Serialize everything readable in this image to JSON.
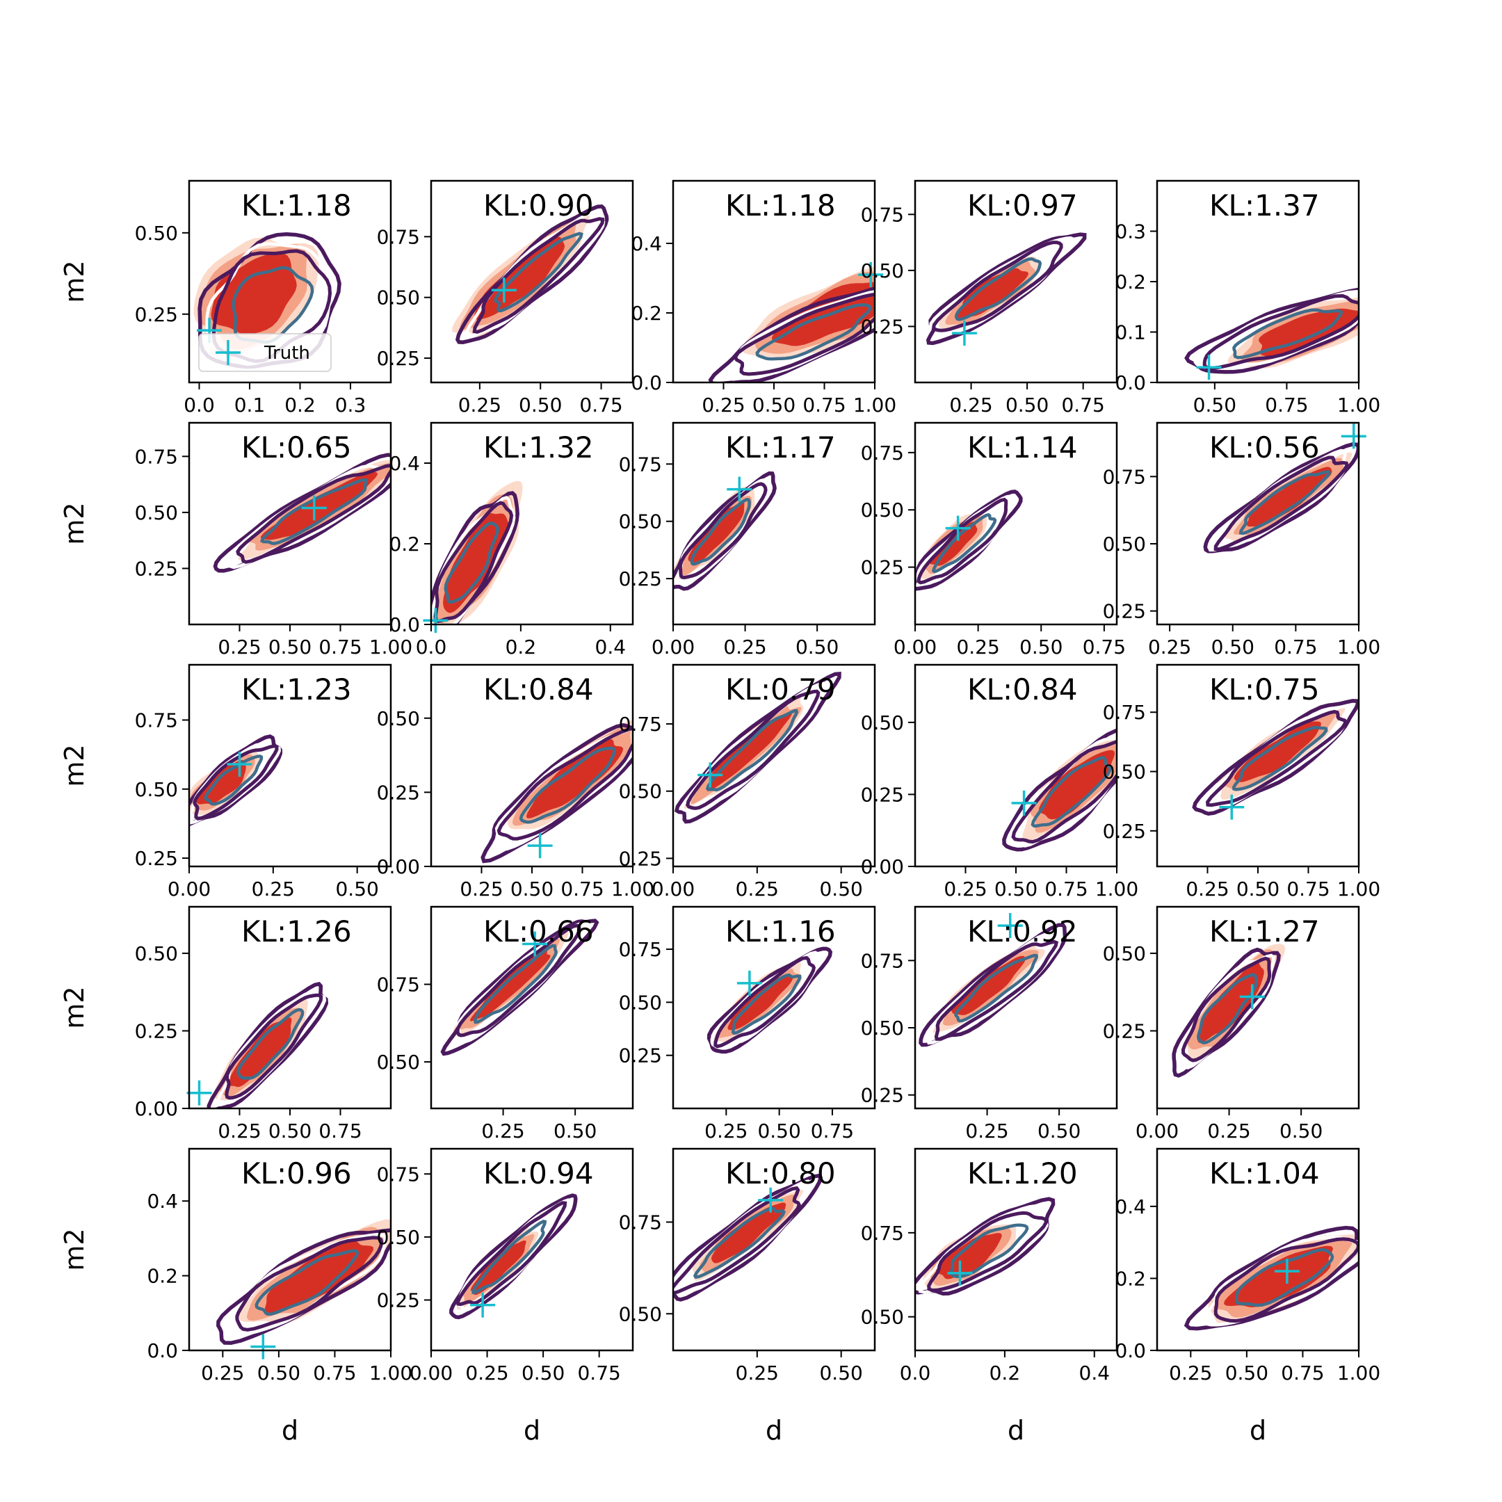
{
  "figure": {
    "xlabel": "d",
    "ylabel": "m2",
    "legend": {
      "label": "Truth",
      "placement": "lower-left of first panel"
    }
  },
  "colors": {
    "fill_outer": "#fcd3c1",
    "fill_mid": "#f08a6a",
    "fill_inner": "#d42a20",
    "line_outer": "#4b1a5e",
    "line_mid": "#ffffff",
    "line_inner": "#3f6e8c",
    "truth_marker": "#17becf"
  },
  "chart_data": [
    {
      "type": "contour",
      "kl_label": "KL:1.18",
      "xlim": [
        -0.02,
        0.38
      ],
      "ylim": [
        0.04,
        0.66
      ],
      "xticks": [
        0.0,
        0.1,
        0.2,
        0.3
      ],
      "xtick_labels": [
        "0.0",
        "0.1",
        "0.2",
        "0.3"
      ],
      "yticks": [
        0.25,
        0.5
      ],
      "ytick_labels": [
        "0.25",
        "0.50"
      ],
      "truth": [
        0.02,
        0.2
      ],
      "filled_center": [
        0.11,
        0.31
      ],
      "filled_size": [
        0.3,
        0.38
      ],
      "line_center": [
        0.14,
        0.28
      ],
      "line_size": [
        0.34,
        0.46
      ],
      "angle": 40
    },
    {
      "type": "contour",
      "kl_label": "KL:0.90",
      "xlim": [
        0.05,
        0.88
      ],
      "ylim": [
        0.15,
        0.98
      ],
      "xticks": [
        0.25,
        0.5,
        0.75
      ],
      "xtick_labels": [
        "0.25",
        "0.50",
        "0.75"
      ],
      "yticks": [
        0.25,
        0.5,
        0.75
      ],
      "ytick_labels": [
        "0.25",
        "0.50",
        "0.75"
      ],
      "truth": [
        0.35,
        0.53
      ],
      "filled_center": [
        0.42,
        0.58
      ],
      "filled_size": [
        0.62,
        0.3
      ],
      "line_center": [
        0.48,
        0.6
      ],
      "line_size": [
        0.72,
        0.28
      ],
      "angle": 42
    },
    {
      "type": "contour",
      "kl_label": "KL:1.18",
      "xlim": [
        0.0,
        1.0
      ],
      "ylim": [
        0.0,
        0.58
      ],
      "xticks": [
        0.25,
        0.5,
        0.75,
        1.0
      ],
      "xtick_labels": [
        "0.25",
        "0.50",
        "0.75",
        "1.00"
      ],
      "yticks": [
        0.0,
        0.2,
        0.4
      ],
      "ytick_labels": [
        "0.0",
        "0.2",
        "0.4"
      ],
      "truth": [
        0.98,
        0.31
      ],
      "filled_center": [
        0.8,
        0.2
      ],
      "filled_size": [
        0.62,
        0.36
      ],
      "line_center": [
        0.7,
        0.14
      ],
      "line_size": [
        0.72,
        0.3
      ],
      "angle": 24
    },
    {
      "type": "contour",
      "kl_label": "KL:0.97",
      "xlim": [
        0.0,
        0.9
      ],
      "ylim": [
        0.0,
        0.9
      ],
      "xticks": [
        0.25,
        0.5,
        0.75
      ],
      "xtick_labels": [
        "0.25",
        "0.50",
        "0.75"
      ],
      "yticks": [
        0.25,
        0.5,
        0.75
      ],
      "ytick_labels": [
        "0.25",
        "0.50",
        "0.75"
      ],
      "truth": [
        0.22,
        0.22
      ],
      "filled_center": [
        0.34,
        0.4
      ],
      "filled_size": [
        0.46,
        0.26
      ],
      "line_center": [
        0.38,
        0.42
      ],
      "line_size": [
        0.72,
        0.28
      ],
      "angle": 34
    },
    {
      "type": "contour",
      "kl_label": "KL:1.37",
      "xlim": [
        0.3,
        1.0
      ],
      "ylim": [
        0.0,
        0.4
      ],
      "xticks": [
        0.5,
        0.75,
        1.0
      ],
      "xtick_labels": [
        "0.50",
        "0.75",
        "1.00"
      ],
      "yticks": [
        0.0,
        0.1,
        0.2,
        0.3
      ],
      "ytick_labels": [
        "0.0",
        "0.1",
        "0.2",
        "0.3"
      ],
      "truth": [
        0.48,
        0.03
      ],
      "filled_center": [
        0.82,
        0.1
      ],
      "filled_size": [
        0.36,
        0.2
      ],
      "line_center": [
        0.75,
        0.1
      ],
      "line_size": [
        0.48,
        0.2
      ],
      "angle": 20
    },
    {
      "type": "contour",
      "kl_label": "KL:0.65",
      "xlim": [
        0.0,
        1.0
      ],
      "ylim": [
        0.0,
        0.9
      ],
      "xticks": [
        0.25,
        0.5,
        0.75,
        1.0
      ],
      "xtick_labels": [
        "0.25",
        "0.50",
        "0.75",
        "1.00"
      ],
      "yticks": [
        0.25,
        0.5,
        0.75
      ],
      "ytick_labels": [
        "0.25",
        "0.50",
        "0.75"
      ],
      "truth": [
        0.62,
        0.52
      ],
      "filled_center": [
        0.65,
        0.52
      ],
      "filled_size": [
        0.78,
        0.26
      ],
      "line_center": [
        0.62,
        0.5
      ],
      "line_size": [
        0.9,
        0.3
      ],
      "angle": 30
    },
    {
      "type": "contour",
      "kl_label": "KL:1.32",
      "xlim": [
        0.0,
        0.45
      ],
      "ylim": [
        0.0,
        0.5
      ],
      "xticks": [
        0.0,
        0.2,
        0.4
      ],
      "xtick_labels": [
        "0.0",
        "0.2",
        "0.4"
      ],
      "yticks": [
        0.0,
        0.2,
        0.4
      ],
      "ytick_labels": [
        "0.0",
        "0.2",
        "0.4"
      ],
      "truth": [
        0.01,
        0.01
      ],
      "filled_center": [
        0.1,
        0.16
      ],
      "filled_size": [
        0.34,
        0.2
      ],
      "line_center": [
        0.09,
        0.15
      ],
      "line_size": [
        0.34,
        0.18
      ],
      "angle": 60
    },
    {
      "type": "contour",
      "kl_label": "KL:1.17",
      "xlim": [
        0.0,
        0.7
      ],
      "ylim": [
        0.05,
        0.93
      ],
      "xticks": [
        0.0,
        0.25,
        0.5
      ],
      "xtick_labels": [
        "0.00",
        "0.25",
        "0.50"
      ],
      "yticks": [
        0.25,
        0.5,
        0.75
      ],
      "ytick_labels": [
        "0.25",
        "0.50",
        "0.75"
      ],
      "truth": [
        0.23,
        0.64
      ],
      "filled_center": [
        0.15,
        0.45
      ],
      "filled_size": [
        0.4,
        0.2
      ],
      "line_center": [
        0.17,
        0.45
      ],
      "line_size": [
        0.52,
        0.22
      ],
      "angle": 48
    },
    {
      "type": "contour",
      "kl_label": "KL:1.14",
      "xlim": [
        0.0,
        0.8
      ],
      "ylim": [
        0.0,
        0.88
      ],
      "xticks": [
        0.0,
        0.25,
        0.5,
        0.75
      ],
      "xtick_labels": [
        "0.00",
        "0.25",
        "0.50",
        "0.75"
      ],
      "yticks": [
        0.25,
        0.5,
        0.75
      ],
      "ytick_labels": [
        "0.25",
        "0.50",
        "0.75"
      ],
      "truth": [
        0.17,
        0.42
      ],
      "filled_center": [
        0.15,
        0.35
      ],
      "filled_size": [
        0.32,
        0.2
      ],
      "line_center": [
        0.2,
        0.36
      ],
      "line_size": [
        0.52,
        0.22
      ],
      "angle": 42
    },
    {
      "type": "contour",
      "kl_label": "KL:0.56",
      "xlim": [
        0.2,
        1.0
      ],
      "ylim": [
        0.2,
        0.95
      ],
      "xticks": [
        0.25,
        0.5,
        0.75,
        1.0
      ],
      "xtick_labels": [
        "0.25",
        "0.50",
        "0.75",
        "1.00"
      ],
      "yticks": [
        0.25,
        0.5,
        0.75
      ],
      "ytick_labels": [
        "0.25",
        "0.50",
        "0.75"
      ],
      "truth": [
        0.98,
        0.9
      ],
      "filled_center": [
        0.72,
        0.67
      ],
      "filled_size": [
        0.5,
        0.2
      ],
      "line_center": [
        0.7,
        0.66
      ],
      "line_size": [
        0.62,
        0.24
      ],
      "angle": 34
    },
    {
      "type": "contour",
      "kl_label": "KL:1.23",
      "xlim": [
        0.0,
        0.6
      ],
      "ylim": [
        0.22,
        0.95
      ],
      "xticks": [
        0.0,
        0.25,
        0.5
      ],
      "xtick_labels": [
        "0.00",
        "0.25",
        "0.50"
      ],
      "yticks": [
        0.25,
        0.5,
        0.75
      ],
      "ytick_labels": [
        "0.25",
        "0.50",
        "0.75"
      ],
      "truth": [
        0.15,
        0.59
      ],
      "filled_center": [
        0.1,
        0.52
      ],
      "filled_size": [
        0.26,
        0.18
      ],
      "line_center": [
        0.13,
        0.53
      ],
      "line_size": [
        0.36,
        0.2
      ],
      "angle": 40
    },
    {
      "type": "contour",
      "kl_label": "KL:0.84",
      "xlim": [
        0.0,
        1.0
      ],
      "ylim": [
        0.0,
        0.68
      ],
      "xticks": [
        0.25,
        0.5,
        0.75,
        1.0
      ],
      "xtick_labels": [
        "0.25",
        "0.50",
        "0.75",
        "1.00"
      ],
      "yticks": [
        0.0,
        0.25,
        0.5
      ],
      "ytick_labels": [
        "0.00",
        "0.25",
        "0.50"
      ],
      "truth": [
        0.54,
        0.07
      ],
      "filled_center": [
        0.72,
        0.3
      ],
      "filled_size": [
        0.6,
        0.3
      ],
      "line_center": [
        0.68,
        0.27
      ],
      "line_size": [
        0.76,
        0.32
      ],
      "angle": 38
    },
    {
      "type": "contour",
      "kl_label": "KL:0.79",
      "xlim": [
        0.0,
        0.6
      ],
      "ylim": [
        0.22,
        0.97
      ],
      "xticks": [
        0.0,
        0.25,
        0.5
      ],
      "xtick_labels": [
        "0.00",
        "0.25",
        "0.50"
      ],
      "yticks": [
        0.25,
        0.5,
        0.75
      ],
      "ytick_labels": [
        "0.25",
        "0.50",
        "0.75"
      ],
      "truth": [
        0.11,
        0.56
      ],
      "filled_center": [
        0.22,
        0.65
      ],
      "filled_size": [
        0.46,
        0.16
      ],
      "line_center": [
        0.24,
        0.65
      ],
      "line_size": [
        0.62,
        0.2
      ],
      "angle": 42
    },
    {
      "type": "contour",
      "kl_label": "KL:0.84",
      "xlim": [
        0.0,
        1.0
      ],
      "ylim": [
        0.0,
        0.7
      ],
      "xticks": [
        0.25,
        0.5,
        0.75,
        1.0
      ],
      "xtick_labels": [
        "0.25",
        "0.50",
        "0.75",
        "1.00"
      ],
      "yticks": [
        0.0,
        0.25,
        0.5
      ],
      "ytick_labels": [
        "0.00",
        "0.25",
        "0.50"
      ],
      "truth": [
        0.54,
        0.22
      ],
      "filled_center": [
        0.8,
        0.28
      ],
      "filled_size": [
        0.5,
        0.32
      ],
      "line_center": [
        0.78,
        0.26
      ],
      "line_size": [
        0.64,
        0.34
      ],
      "angle": 42
    },
    {
      "type": "contour",
      "kl_label": "KL:0.75",
      "xlim": [
        0.0,
        1.0
      ],
      "ylim": [
        0.1,
        0.95
      ],
      "xticks": [
        0.25,
        0.5,
        0.75,
        1.0
      ],
      "xtick_labels": [
        "0.25",
        "0.50",
        "0.75",
        "1.00"
      ],
      "yticks": [
        0.25,
        0.5,
        0.75
      ],
      "ytick_labels": [
        "0.25",
        "0.50",
        "0.75"
      ],
      "truth": [
        0.37,
        0.35
      ],
      "filled_center": [
        0.6,
        0.58
      ],
      "filled_size": [
        0.6,
        0.26
      ],
      "line_center": [
        0.6,
        0.56
      ],
      "line_size": [
        0.78,
        0.3
      ],
      "angle": 34
    },
    {
      "type": "contour",
      "kl_label": "KL:1.26",
      "xlim": [
        0.0,
        1.0
      ],
      "ylim": [
        0.0,
        0.65
      ],
      "xticks": [
        0.25,
        0.5,
        0.75
      ],
      "xtick_labels": [
        "0.25",
        "0.50",
        "0.75"
      ],
      "yticks": [
        0.0,
        0.25,
        0.5
      ],
      "ytick_labels": [
        "0.00",
        "0.25",
        "0.50"
      ],
      "truth": [
        0.05,
        0.05
      ],
      "filled_center": [
        0.36,
        0.18
      ],
      "filled_size": [
        0.46,
        0.24
      ],
      "line_center": [
        0.4,
        0.2
      ],
      "line_size": [
        0.58,
        0.26
      ],
      "angle": 48
    },
    {
      "type": "contour",
      "kl_label": "KL:0.66",
      "xlim": [
        0.0,
        0.7
      ],
      "ylim": [
        0.35,
        1.0
      ],
      "xticks": [
        0.25,
        0.5
      ],
      "xtick_labels": [
        "0.25",
        "0.50"
      ],
      "yticks": [
        0.5,
        0.75
      ],
      "ytick_labels": [
        "0.50",
        "0.75"
      ],
      "truth": [
        0.36,
        0.88
      ],
      "filled_center": [
        0.28,
        0.75
      ],
      "filled_size": [
        0.44,
        0.14
      ],
      "line_center": [
        0.3,
        0.75
      ],
      "line_size": [
        0.58,
        0.18
      ],
      "angle": 42
    },
    {
      "type": "contour",
      "kl_label": "KL:1.16",
      "xlim": [
        0.0,
        0.95
      ],
      "ylim": [
        0.0,
        0.95
      ],
      "xticks": [
        0.25,
        0.5,
        0.75
      ],
      "xtick_labels": [
        "0.25",
        "0.50",
        "0.75"
      ],
      "yticks": [
        0.25,
        0.5,
        0.75
      ],
      "ytick_labels": [
        "0.25",
        "0.50",
        "0.75"
      ],
      "truth": [
        0.36,
        0.59
      ],
      "filled_center": [
        0.4,
        0.5
      ],
      "filled_size": [
        0.48,
        0.24
      ],
      "line_center": [
        0.44,
        0.5
      ],
      "line_size": [
        0.64,
        0.28
      ],
      "angle": 40
    },
    {
      "type": "contour",
      "kl_label": "KL:0.92",
      "xlim": [
        0.0,
        0.7
      ],
      "ylim": [
        0.2,
        0.95
      ],
      "xticks": [
        0.25,
        0.5
      ],
      "xtick_labels": [
        "0.25",
        "0.50"
      ],
      "yticks": [
        0.25,
        0.5,
        0.75
      ],
      "ytick_labels": [
        "0.25",
        "0.50",
        "0.75"
      ],
      "truth": [
        0.33,
        0.88
      ],
      "filled_center": [
        0.25,
        0.65
      ],
      "filled_size": [
        0.42,
        0.18
      ],
      "line_center": [
        0.28,
        0.65
      ],
      "line_size": [
        0.58,
        0.22
      ],
      "angle": 38
    },
    {
      "type": "contour",
      "kl_label": "KL:1.27",
      "xlim": [
        0.0,
        0.7
      ],
      "ylim": [
        0.0,
        0.65
      ],
      "xticks": [
        0.0,
        0.25,
        0.5
      ],
      "xtick_labels": [
        "0.00",
        "0.25",
        "0.50"
      ],
      "yticks": [
        0.25,
        0.5
      ],
      "ytick_labels": [
        "0.25",
        "0.50"
      ],
      "truth": [
        0.33,
        0.36
      ],
      "filled_center": [
        0.26,
        0.34
      ],
      "filled_size": [
        0.42,
        0.22
      ],
      "line_center": [
        0.24,
        0.32
      ],
      "line_size": [
        0.46,
        0.24
      ],
      "angle": 50
    },
    {
      "type": "contour",
      "kl_label": "KL:0.96",
      "xlim": [
        0.1,
        1.0
      ],
      "ylim": [
        0.0,
        0.54
      ],
      "xticks": [
        0.25,
        0.5,
        0.75,
        1.0
      ],
      "xtick_labels": [
        "0.25",
        "0.50",
        "0.75",
        "1.00"
      ],
      "yticks": [
        0.0,
        0.2,
        0.4
      ],
      "ytick_labels": [
        "0.0",
        "0.2",
        "0.4"
      ],
      "truth": [
        0.43,
        0.01
      ],
      "filled_center": [
        0.68,
        0.2
      ],
      "filled_size": [
        0.54,
        0.3
      ],
      "line_center": [
        0.62,
        0.18
      ],
      "line_size": [
        0.62,
        0.3
      ],
      "angle": 30
    },
    {
      "type": "contour",
      "kl_label": "KL:0.94",
      "xlim": [
        0.0,
        0.9
      ],
      "ylim": [
        0.05,
        0.85
      ],
      "xticks": [
        0.0,
        0.25,
        0.5,
        0.75
      ],
      "xtick_labels": [
        "0.00",
        "0.25",
        "0.50",
        "0.75"
      ],
      "yticks": [
        0.25,
        0.5,
        0.75
      ],
      "ytick_labels": [
        "0.25",
        "0.50",
        "0.75"
      ],
      "truth": [
        0.23,
        0.23
      ],
      "filled_center": [
        0.3,
        0.38
      ],
      "filled_size": [
        0.4,
        0.18
      ],
      "line_center": [
        0.36,
        0.42
      ],
      "line_size": [
        0.64,
        0.22
      ],
      "angle": 44
    },
    {
      "type": "contour",
      "kl_label": "KL:0.80",
      "xlim": [
        0.0,
        0.6
      ],
      "ylim": [
        0.4,
        0.95
      ],
      "xticks": [
        0.25,
        0.5
      ],
      "xtick_labels": [
        "0.25",
        "0.50"
      ],
      "yticks": [
        0.5,
        0.75
      ],
      "ytick_labels": [
        "0.50",
        "0.75"
      ],
      "truth": [
        0.29,
        0.81
      ],
      "filled_center": [
        0.22,
        0.72
      ],
      "filled_size": [
        0.34,
        0.14
      ],
      "line_center": [
        0.2,
        0.7
      ],
      "line_size": [
        0.48,
        0.18
      ],
      "angle": 38
    },
    {
      "type": "contour",
      "kl_label": "KL:1.20",
      "xlim": [
        0.0,
        0.45
      ],
      "ylim": [
        0.4,
        1.0
      ],
      "xticks": [
        0.0,
        0.2,
        0.4
      ],
      "xtick_labels": [
        "0.0",
        "0.2",
        "0.4"
      ],
      "yticks": [
        0.5,
        0.75
      ],
      "ytick_labels": [
        "0.50",
        "0.75"
      ],
      "truth": [
        0.1,
        0.63
      ],
      "filled_center": [
        0.12,
        0.68
      ],
      "filled_size": [
        0.24,
        0.16
      ],
      "line_center": [
        0.16,
        0.7
      ],
      "line_size": [
        0.36,
        0.2
      ],
      "angle": 32
    },
    {
      "type": "contour",
      "kl_label": "KL:1.04",
      "xlim": [
        0.1,
        1.0
      ],
      "ylim": [
        0.0,
        0.56
      ],
      "xticks": [
        0.25,
        0.5,
        0.75,
        1.0
      ],
      "xtick_labels": [
        "0.25",
        "0.50",
        "0.75",
        "1.00"
      ],
      "yticks": [
        0.0,
        0.2,
        0.4
      ],
      "ytick_labels": [
        "0.0",
        "0.2",
        "0.4"
      ],
      "truth": [
        0.68,
        0.22
      ],
      "filled_center": [
        0.66,
        0.2
      ],
      "filled_size": [
        0.52,
        0.3
      ],
      "line_center": [
        0.66,
        0.2
      ],
      "line_size": [
        0.6,
        0.32
      ],
      "angle": 26
    }
  ]
}
